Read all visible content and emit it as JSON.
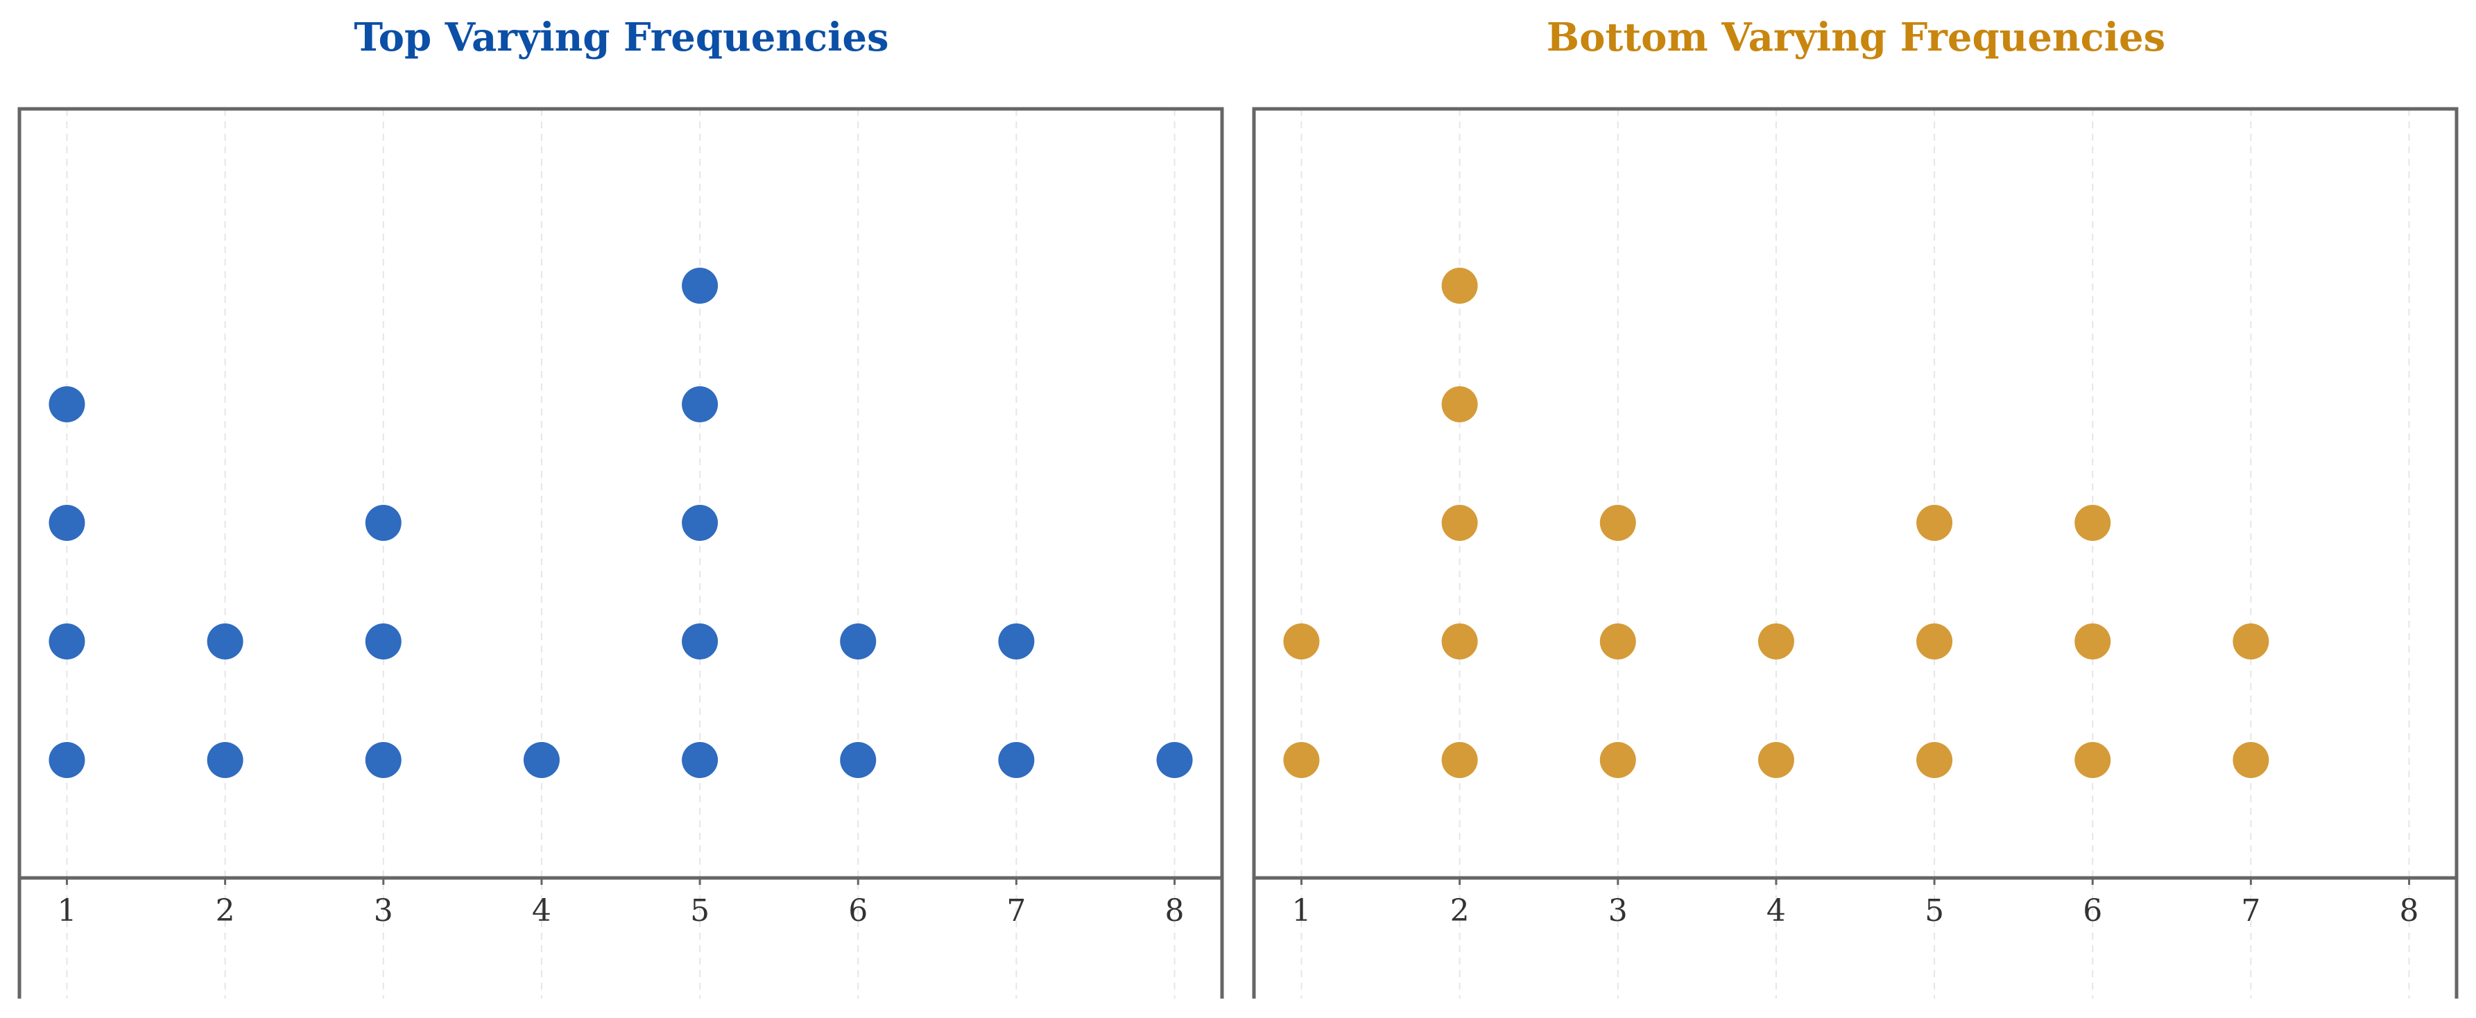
{
  "colors": {
    "left_accent": "#0b4fa6",
    "left_marker": "#2f6bbf",
    "right_accent": "#c8860f",
    "right_marker": "#d49b38",
    "frame": "#666666",
    "grid": "#e6e6e6"
  },
  "chart_data": [
    {
      "type": "scatter",
      "subtype": "dot-plot",
      "title": "Top Varying Frequencies",
      "x_ticks": [
        1,
        2,
        3,
        4,
        5,
        6,
        7,
        8
      ],
      "xlim": [
        0.7,
        8.3
      ],
      "ylim": [
        0,
        6
      ],
      "grid": "vertical dashed",
      "categories": [
        1,
        2,
        3,
        4,
        5,
        6,
        7,
        8
      ],
      "counts": [
        4,
        2,
        3,
        1,
        5,
        2,
        2,
        1
      ]
    },
    {
      "type": "scatter",
      "subtype": "dot-plot",
      "title": "Bottom Varying Frequencies",
      "x_ticks": [
        1,
        2,
        3,
        4,
        5,
        6,
        7,
        8
      ],
      "xlim": [
        0.7,
        8.3
      ],
      "ylim": [
        0,
        6
      ],
      "grid": "vertical dashed",
      "categories": [
        1,
        2,
        3,
        4,
        5,
        6,
        7,
        8
      ],
      "counts": [
        2,
        5,
        3,
        2,
        3,
        3,
        2,
        0
      ]
    }
  ]
}
